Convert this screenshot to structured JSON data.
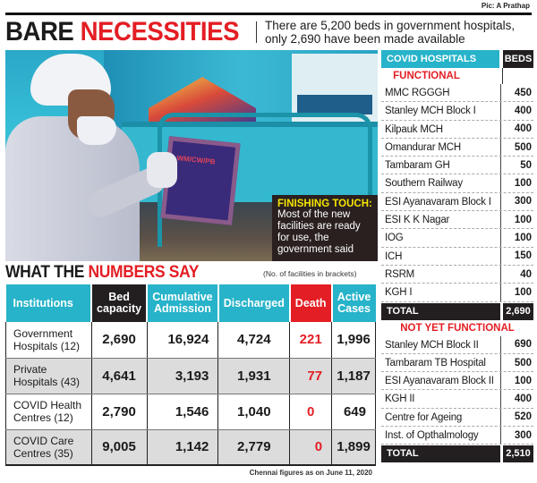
{
  "credit": "Pic: A Prathap",
  "headline": {
    "part1": "BARE ",
    "part2": "NECESSITIES"
  },
  "subhead": {
    "line1": "There are 5,200 beds in government hospitals,",
    "line2": "only 2,690 have been made available"
  },
  "photo": {
    "board_text": "WM/CW/PB",
    "caption_title": "FINISHING TOUCH:",
    "caption_body": "Most of the new facilities are ready for use, the government said"
  },
  "numbers_section": {
    "title_black": "WHAT THE ",
    "title_red": "NUMBERS SAY",
    "note": "(No. of facilities in brackets)",
    "headers": [
      "Institutions",
      "Bed capacity",
      "Cumulative Admission",
      "Discharged",
      "Death",
      "Active Cases"
    ],
    "rows": [
      {
        "institution": "Government Hospitals (12)",
        "bed_capacity": "2,690",
        "cumulative_admission": "16,924",
        "discharged": "4,724",
        "death": "221",
        "active_cases": "1,996"
      },
      {
        "institution": "Private Hospitals (43)",
        "bed_capacity": "4,641",
        "cumulative_admission": "3,193",
        "discharged": "1,931",
        "death": "77",
        "active_cases": "1,187"
      },
      {
        "institution": "COVID Health Centres (12)",
        "bed_capacity": "2,790",
        "cumulative_admission": "1,546",
        "discharged": "1,040",
        "death": "0",
        "active_cases": "649"
      },
      {
        "institution": "COVID Care Centres (35)",
        "bed_capacity": "9,005",
        "cumulative_admission": "1,142",
        "discharged": "2,779",
        "death": "0",
        "active_cases": "1,899"
      }
    ],
    "footnote": "Chennai figures as on June 11, 2020"
  },
  "covid_hospitals": {
    "header": "COVID HOSPITALS",
    "beds_header": "BEDS",
    "functional_label": "FUNCTIONAL",
    "functional": [
      {
        "name": "MMC RGGGH",
        "beds": "450"
      },
      {
        "name": "Stanley MCH Block I",
        "beds": "400"
      },
      {
        "name": "Kilpauk MCH",
        "beds": "400"
      },
      {
        "name": "Omandurar MCH",
        "beds": "500"
      },
      {
        "name": "Tambaram GH",
        "beds": "50"
      },
      {
        "name": "Southern Railway",
        "beds": "100"
      },
      {
        "name": "ESI Ayanavaram Block I",
        "beds": "300"
      },
      {
        "name": "ESI K K Nagar",
        "beds": "100"
      },
      {
        "name": "IOG",
        "beds": "100"
      },
      {
        "name": "ICH",
        "beds": "150"
      },
      {
        "name": "RSRM",
        "beds": "40"
      },
      {
        "name": "KGH I",
        "beds": "100"
      }
    ],
    "functional_total_label": "TOTAL",
    "functional_total": "2,690",
    "not_functional_label": "NOT YET FUNCTIONAL",
    "not_functional": [
      {
        "name": "Stanley MCH Block II",
        "beds": "690"
      },
      {
        "name": "Tambaram TB Hospital",
        "beds": "500"
      },
      {
        "name": "ESI Ayanavaram Block II",
        "beds": "100"
      },
      {
        "name": "KGH II",
        "beds": "400"
      },
      {
        "name": "Centre for Ageing",
        "beds": "520"
      },
      {
        "name": "Inst. of Opthalmology",
        "beds": "300"
      }
    ],
    "not_functional_total_label": "TOTAL",
    "not_functional_total": "2,510"
  },
  "colors": {
    "teal": "#27b3c9",
    "red": "#e31e24",
    "black": "#231f20",
    "caption_yellow": "#f5e400",
    "row_shade": "#dcdcdc"
  }
}
